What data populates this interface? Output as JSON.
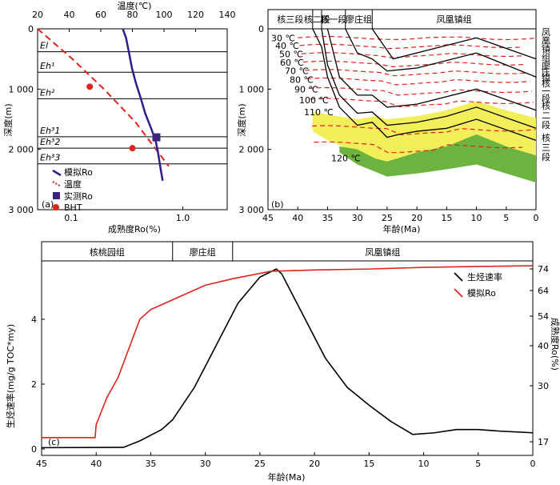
{
  "chart_data": [
    {
      "panel": "(a)",
      "type": "line",
      "xlabel": "成熟度Ro(%)",
      "x2label": "温度(℃)",
      "ylabel": "深度(m)",
      "xscale": "log",
      "xlim": [
        0.05,
        2.5
      ],
      "x2lim": [
        20,
        140
      ],
      "ylim": [
        0,
        3000
      ],
      "xticks": [
        "0.1",
        "1.0"
      ],
      "x2ticks": [
        "20",
        "40",
        "60",
        "80",
        "100",
        "120",
        "140"
      ],
      "yticks": [
        "0",
        "1 000",
        "2 000",
        "3 000"
      ],
      "formations": [
        {
          "label": "Eh1-top",
          "text": "El",
          "depth": 380
        },
        {
          "label": "Eh1",
          "text": "Eh¹",
          "depth": 720
        },
        {
          "label": "Eh2",
          "text": "Eh²",
          "depth": 1160
        },
        {
          "label": "Eh31",
          "text": "Eh³1",
          "depth": 1790
        },
        {
          "label": "Eh32",
          "text": "Eh³2",
          "depth": 1980
        },
        {
          "label": "Eh33",
          "text": "Eh³3",
          "depth": 2240
        }
      ],
      "series": [
        {
          "name": "模拟Ro",
          "axis": "Ro",
          "x": [
            0.29,
            0.31,
            0.33,
            0.35,
            0.38,
            0.42,
            0.46,
            0.52,
            0.57,
            0.6,
            0.63,
            0.66
          ],
          "y": [
            0,
            150,
            400,
            650,
            900,
            1150,
            1400,
            1650,
            1850,
            2050,
            2300,
            2520
          ]
        },
        {
          "name": "温度",
          "axis": "temp",
          "x": [
            20,
            42,
            62,
            82,
            103
          ],
          "y": [
            0,
            500,
            1000,
            1550,
            2280
          ]
        },
        {
          "name": "实测Ro",
          "axis": "Ro",
          "x": [
            0.58
          ],
          "y": [
            1800
          ]
        },
        {
          "name": "BHT",
          "axis": "temp",
          "x": [
            53,
            80
          ],
          "y": [
            960,
            1980
          ]
        }
      ]
    },
    {
      "panel": "(b)",
      "type": "line",
      "xlabel": "年龄(Ma)",
      "ylabel": "深度(m)",
      "xlim": [
        45,
        0
      ],
      "ylim": [
        0,
        3000
      ],
      "xticks": [
        "45",
        "40",
        "35",
        "30",
        "25",
        "20",
        "15",
        "10",
        "5",
        "0"
      ],
      "yticks": [
        "0",
        "1 000",
        "2 000",
        "3 000"
      ],
      "top_units": [
        {
          "label": "核三段",
          "from": 45,
          "to": 37.5
        },
        {
          "label": "核二段",
          "from": 37.5,
          "to": 36
        },
        {
          "label": "核一段",
          "from": 36,
          "to": 32
        },
        {
          "label": "廖庄组",
          "from": 32,
          "to": 27.5
        },
        {
          "label": "凤凰镇组",
          "from": 27.5,
          "to": 0
        }
      ],
      "right_units": [
        "凤凰镇组",
        "廖庄组",
        "核一段",
        "核二段",
        "核三段"
      ],
      "isotherms": [
        "30 ℃",
        "40 ℃",
        "50 ℃",
        "60 ℃",
        "70 ℃",
        "80 ℃",
        "90 ℃",
        "100 ℃",
        "110 ℃",
        "120 ℃"
      ],
      "burial_lines": [
        {
          "x": [
            37.5,
            36,
            35,
            33,
            30,
            27.5,
            25,
            23,
            20,
            15,
            10,
            0
          ],
          "y": [
            0,
            300,
            800,
            1300,
            1600,
            1550,
            1800,
            1750,
            1700,
            1650,
            1500,
            1850
          ]
        },
        {
          "x": [
            36,
            35,
            33,
            30,
            27.5,
            25,
            20,
            15,
            10,
            0
          ],
          "y": [
            0,
            600,
            1100,
            1400,
            1380,
            1600,
            1550,
            1450,
            1300,
            1650
          ]
        },
        {
          "x": [
            35,
            33,
            30,
            27.5,
            25,
            20,
            10,
            0
          ],
          "y": [
            0,
            800,
            1100,
            1100,
            1300,
            1250,
            1000,
            1350
          ]
        },
        {
          "x": [
            32,
            30,
            27.5,
            25,
            20,
            10,
            0
          ],
          "y": [
            0,
            400,
            500,
            700,
            650,
            400,
            800
          ]
        },
        {
          "x": [
            27.5,
            24,
            10,
            0
          ],
          "y": [
            0,
            500,
            150,
            500
          ]
        }
      ]
    },
    {
      "panel": "(c)",
      "type": "line",
      "xlabel": "年龄(Ma)",
      "ylabel": "生烃速率(mg/g TOC*my)",
      "y2label": "成熟度Ro(%)",
      "xlim": [
        45,
        0
      ],
      "ylim": [
        0,
        5.8
      ],
      "xticks": [
        "45",
        "40",
        "35",
        "30",
        "25",
        "20",
        "15",
        "10",
        "5",
        "0"
      ],
      "yticks": [
        "0",
        "2",
        "4"
      ],
      "y2ticks": [
        "17",
        "30",
        "40",
        "54",
        "64",
        "74"
      ],
      "top_units": [
        {
          "label": "核桃园组",
          "from": 45,
          "to": 33
        },
        {
          "label": "廖庄组",
          "from": 33,
          "to": 27.5
        },
        {
          "label": "凤凰镇组",
          "from": 27.5,
          "to": 0
        }
      ],
      "series": [
        {
          "name": "生烃速率",
          "color": "#000000",
          "x": [
            45,
            37.5,
            36,
            34,
            33,
            31,
            29,
            27,
            25,
            23.5,
            23,
            21,
            19,
            17,
            15,
            13,
            11,
            9,
            7,
            5,
            3,
            0
          ],
          "y": [
            0.04,
            0.05,
            0.25,
            0.6,
            0.9,
            1.9,
            3.2,
            4.5,
            5.3,
            5.55,
            5.4,
            4.1,
            2.8,
            1.9,
            1.35,
            0.85,
            0.45,
            0.5,
            0.6,
            0.6,
            0.55,
            0.5
          ]
        },
        {
          "name": "模拟Ro",
          "color": "#e0231b",
          "x": [
            45,
            40.1,
            40,
            39,
            38,
            37,
            36,
            35,
            33,
            30,
            27.5,
            24,
            20,
            15,
            10,
            5,
            0
          ],
          "y": [
            0.35,
            0.35,
            0.75,
            1.6,
            2.2,
            3.1,
            4.0,
            4.3,
            4.6,
            5.05,
            5.25,
            5.48,
            5.52,
            5.55,
            5.6,
            5.63,
            5.65
          ]
        }
      ],
      "legend": [
        {
          "name": "生烃速率",
          "color": "#000000"
        },
        {
          "name": "模拟Ro",
          "color": "#e0231b"
        }
      ]
    }
  ],
  "text": {
    "a_top_axis_title": "温度(℃)",
    "a_bottom_axis_title": "成熟度Ro(%)",
    "a_y_title": "深度(m)",
    "a_panel": "(a)",
    "a_legend": [
      "模拟Ro",
      "温度",
      "实测Ro",
      "BHT"
    ],
    "b_panel": "(b)",
    "b_x_title": "年龄(Ma)",
    "b_y_title": "深度(m)",
    "c_panel": "(c)",
    "c_x_title": "年龄(Ma)",
    "c_y_title": "生烃速率(mg/g TOC*my)",
    "c_y2_title": "成熟度Ro(%)"
  }
}
